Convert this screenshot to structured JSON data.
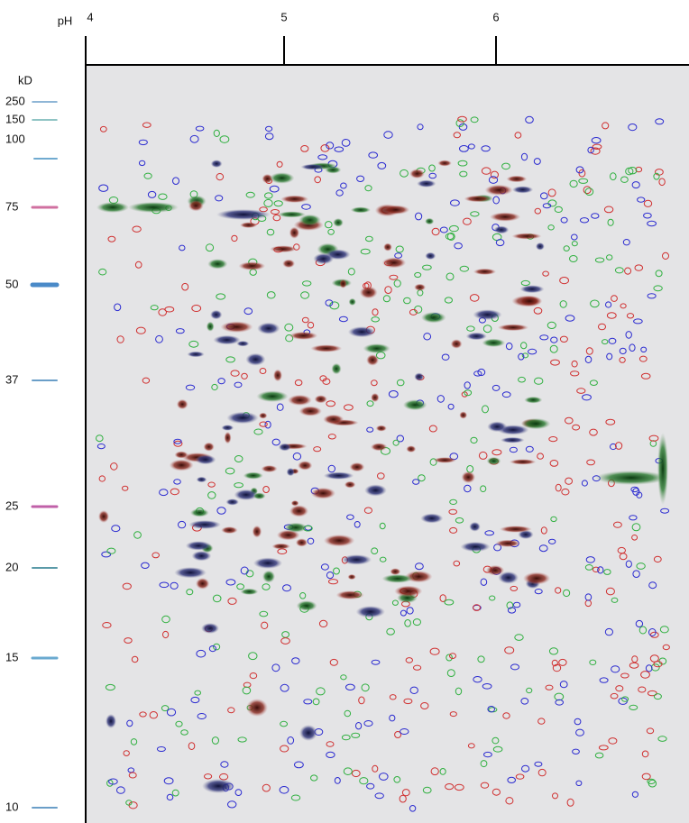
{
  "ph_axis": {
    "unit": "pH",
    "ticks": [
      "4",
      "5",
      "6"
    ]
  },
  "mw_axis": {
    "unit": "kD",
    "markers": [
      "250",
      "150",
      "100",
      "75",
      "50",
      "37",
      "25",
      "20",
      "15",
      "10"
    ]
  }
}
